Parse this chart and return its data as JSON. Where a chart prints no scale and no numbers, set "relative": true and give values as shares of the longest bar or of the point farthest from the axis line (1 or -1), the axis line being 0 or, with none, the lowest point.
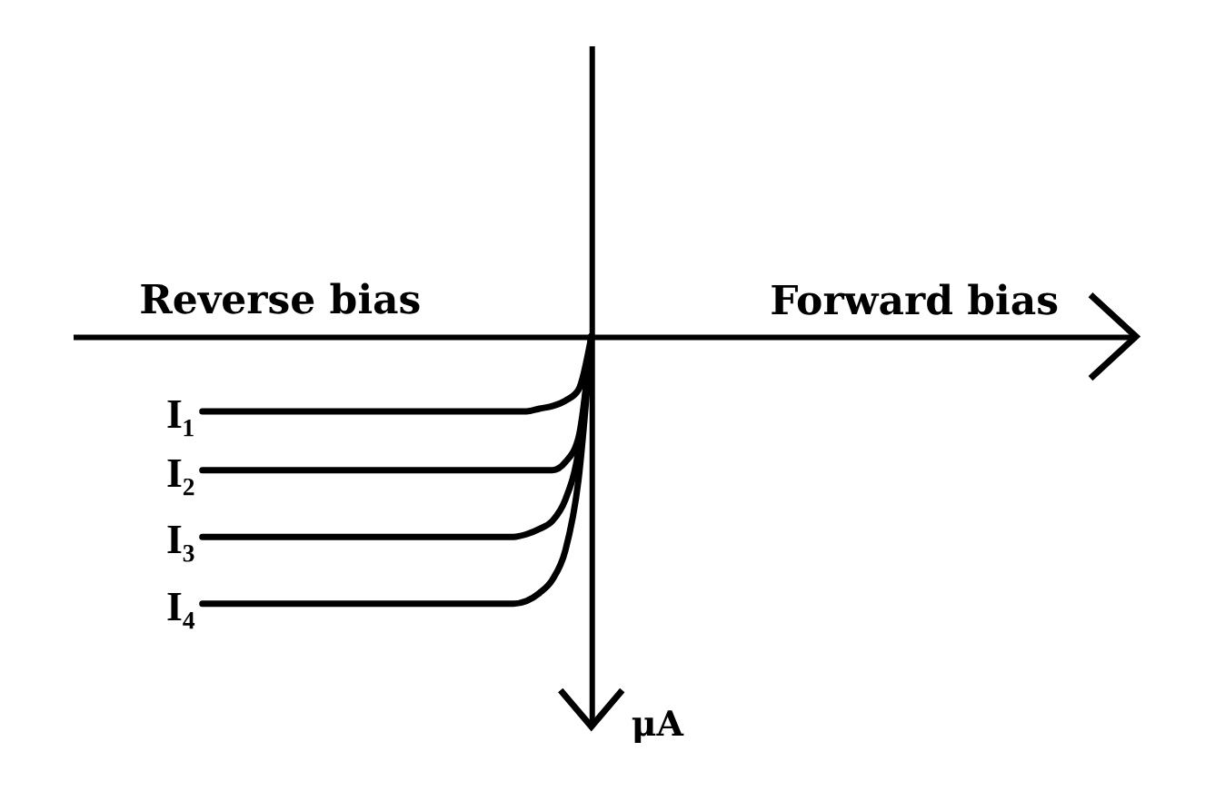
{
  "chart_data": {
    "type": "line",
    "relative": true,
    "xlabel": "Forward bias",
    "annotations": [
      "Reverse bias",
      "μA"
    ],
    "tick_labels": false,
    "line_style": "solid",
    "categories": [
      null,
      null,
      null,
      null,
      null,
      null,
      null,
      null,
      null,
      null,
      null,
      null,
      null,
      null,
      null,
      null,
      null,
      null,
      null,
      null,
      null,
      null,
      null,
      null,
      null,
      null,
      null,
      null,
      null,
      null,
      null,
      null,
      null,
      null,
      null,
      null,
      null,
      null,
      null,
      null,
      null,
      null,
      null,
      null,
      null,
      null,
      null,
      null,
      null,
      null,
      null,
      null,
      null,
      null,
      null,
      null,
      null,
      null,
      null,
      null,
      null,
      null,
      null,
      null,
      null,
      null,
      null,
      null,
      null,
      null,
      null,
      null,
      null,
      null,
      null,
      null,
      null,
      null,
      null,
      null,
      null,
      null,
      null
    ],
    "series": [
      {
        "name": "I₁",
        "color": "#000000",
        "values": [
          null,
          null,
          null,
          null,
          null,
          null,
          null,
          null,
          null,
          null,
          -0.28,
          -0.28,
          -0.28,
          -0.28,
          -0.28,
          -0.28,
          -0.28,
          -0.28,
          -0.28,
          -0.28,
          -0.28,
          -0.28,
          -0.28,
          -0.28,
          -0.28,
          -0.28,
          -0.28,
          -0.28,
          -0.28,
          -0.28,
          -0.28,
          -0.28,
          -0.28,
          -0.28,
          -0.28,
          -0.28,
          -0.27,
          -0.26,
          -0.24,
          -0.2,
          0,
          null,
          null,
          null,
          null,
          null,
          null,
          null,
          null,
          null,
          null,
          null,
          null,
          null,
          null,
          null,
          null,
          null,
          null,
          null,
          null,
          null,
          null,
          null,
          null,
          null,
          null,
          null,
          null,
          null,
          null,
          null,
          null,
          null,
          null,
          null,
          null,
          null,
          null,
          null,
          null,
          null,
          null
        ]
      },
      {
        "name": "I₂",
        "color": "#000000",
        "values": [
          null,
          null,
          null,
          null,
          null,
          null,
          null,
          null,
          null,
          null,
          -0.5,
          -0.5,
          -0.5,
          -0.5,
          -0.5,
          -0.5,
          -0.5,
          -0.5,
          -0.5,
          -0.5,
          -0.5,
          -0.5,
          -0.5,
          -0.5,
          -0.5,
          -0.5,
          -0.5,
          -0.5,
          -0.5,
          -0.5,
          -0.5,
          -0.5,
          -0.5,
          -0.5,
          -0.5,
          -0.5,
          -0.5,
          -0.5,
          -0.47,
          -0.38,
          0,
          null,
          null,
          null,
          null,
          null,
          null,
          null,
          null,
          null,
          null,
          null,
          null,
          null,
          null,
          null,
          null,
          null,
          null,
          null,
          null,
          null,
          null,
          null,
          null,
          null,
          null,
          null,
          null,
          null,
          null,
          null,
          null,
          null,
          null,
          null,
          null,
          null,
          null,
          null,
          null,
          null,
          null
        ]
      },
      {
        "name": "I₃",
        "color": "#000000",
        "values": [
          null,
          null,
          null,
          null,
          null,
          null,
          null,
          null,
          null,
          null,
          -0.75,
          -0.75,
          -0.75,
          -0.75,
          -0.75,
          -0.75,
          -0.75,
          -0.75,
          -0.75,
          -0.75,
          -0.75,
          -0.75,
          -0.75,
          -0.75,
          -0.75,
          -0.75,
          -0.75,
          -0.75,
          -0.75,
          -0.75,
          -0.75,
          -0.75,
          -0.75,
          -0.75,
          -0.75,
          -0.74,
          -0.72,
          -0.69,
          -0.61,
          -0.43,
          0,
          null,
          null,
          null,
          null,
          null,
          null,
          null,
          null,
          null,
          null,
          null,
          null,
          null,
          null,
          null,
          null,
          null,
          null,
          null,
          null,
          null,
          null,
          null,
          null,
          null,
          null,
          null,
          null,
          null,
          null,
          null,
          null,
          null,
          null,
          null,
          null,
          null,
          null,
          null,
          null,
          null,
          null
        ]
      },
      {
        "name": "I₄",
        "color": "#000000",
        "values": [
          null,
          null,
          null,
          null,
          null,
          null,
          null,
          null,
          null,
          null,
          -1,
          -1,
          -1,
          -1,
          -1,
          -1,
          -1,
          -1,
          -1,
          -1,
          -1,
          -1,
          -1,
          -1,
          -1,
          -1,
          -1,
          -1,
          -1,
          -1,
          -1,
          -1,
          -1,
          -1,
          -1,
          -0.99,
          -0.96,
          -0.91,
          -0.8,
          -0.54,
          0,
          null,
          null,
          null,
          null,
          null,
          null,
          null,
          null,
          null,
          null,
          null,
          null,
          null,
          null,
          null,
          null,
          null,
          null,
          null,
          null,
          null,
          null,
          null,
          null,
          null,
          null,
          null,
          null,
          null,
          null,
          null,
          null,
          null,
          null,
          null,
          null,
          null,
          null,
          null,
          null,
          null,
          null
        ]
      }
    ]
  }
}
